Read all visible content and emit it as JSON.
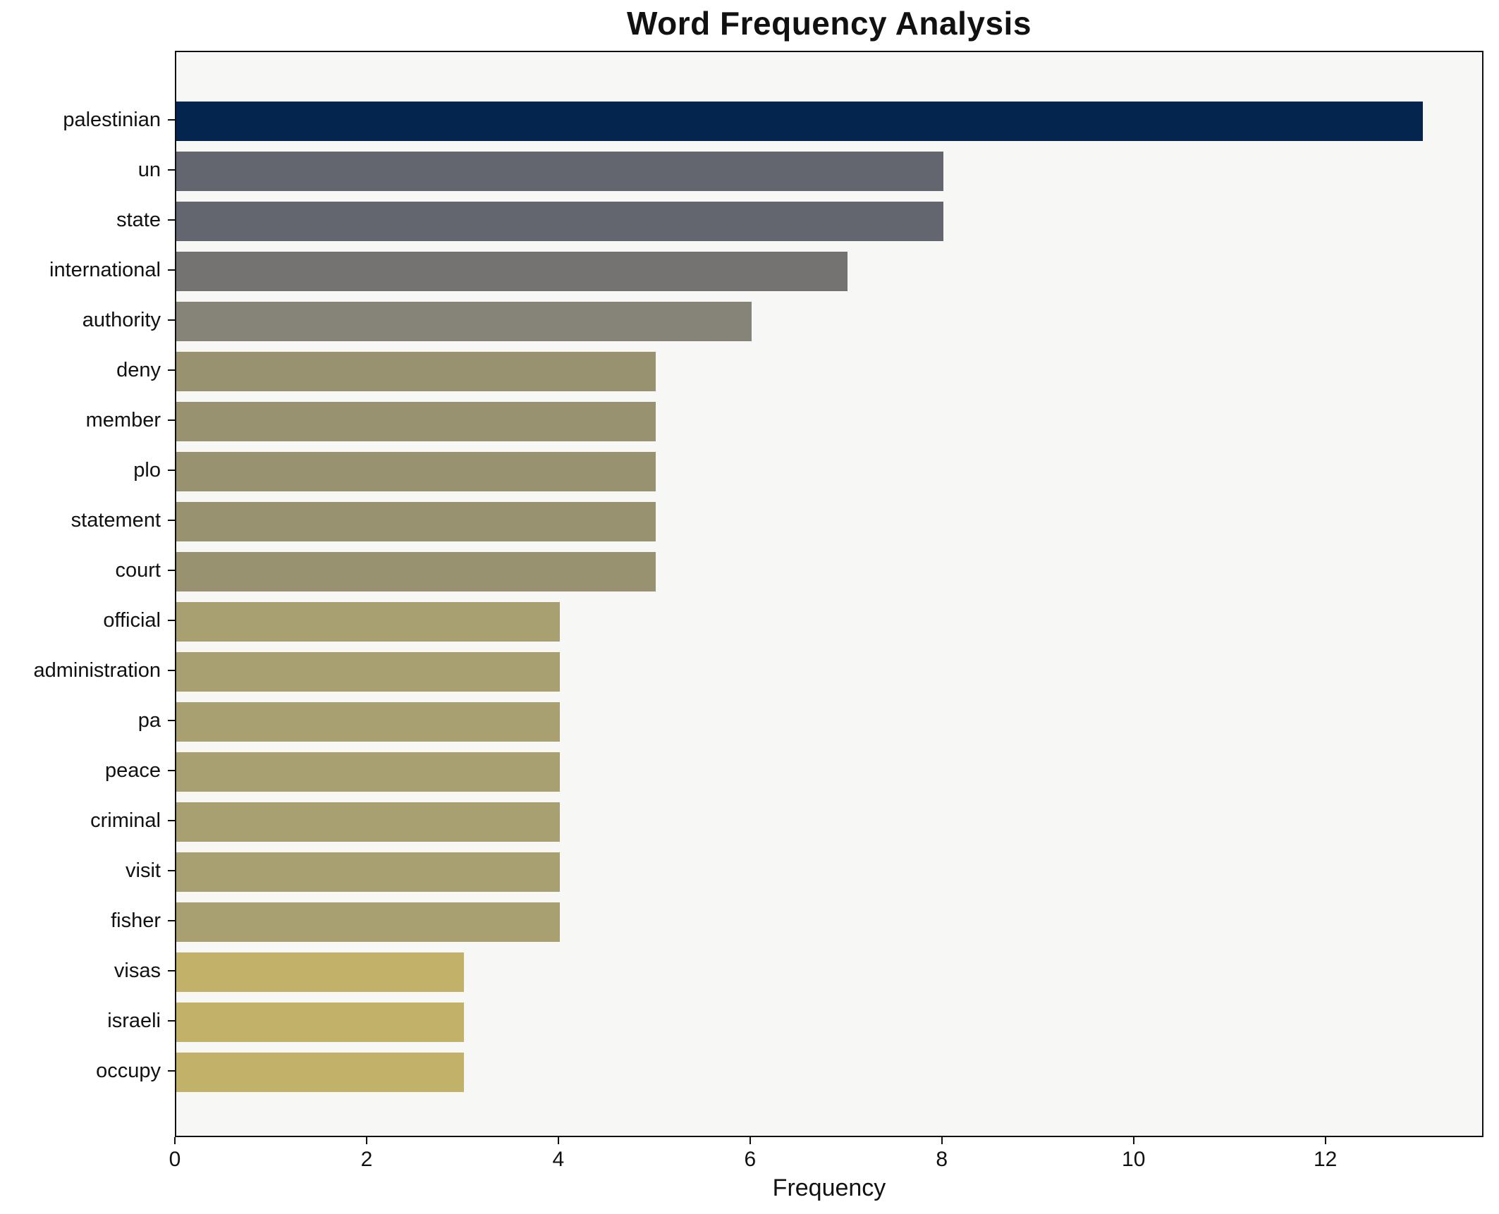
{
  "chart_data": {
    "type": "bar",
    "orientation": "horizontal",
    "title": "Word Frequency Analysis",
    "xlabel": "Frequency",
    "ylabel": "",
    "categories": [
      "palestinian",
      "un",
      "state",
      "international",
      "authority",
      "deny",
      "member",
      "plo",
      "statement",
      "court",
      "official",
      "administration",
      "pa",
      "peace",
      "criminal",
      "visit",
      "fisher",
      "visas",
      "israeli",
      "occupy"
    ],
    "values": [
      13,
      8,
      8,
      7,
      6,
      5,
      5,
      5,
      5,
      5,
      4,
      4,
      4,
      4,
      4,
      4,
      4,
      3,
      3,
      3
    ],
    "bar_colors": [
      "#03254e",
      "#63656f",
      "#63656f",
      "#747371",
      "#868379",
      "#989270",
      "#989270",
      "#989270",
      "#989270",
      "#989270",
      "#a9a071",
      "#a9a071",
      "#a9a071",
      "#a9a071",
      "#a9a071",
      "#a9a071",
      "#a9a071",
      "#c1b169",
      "#c1b169",
      "#c1b169"
    ],
    "xlim": [
      0,
      13.65
    ],
    "xticks": [
      0,
      2,
      4,
      6,
      8,
      10,
      12
    ],
    "grid": false,
    "legend": null,
    "plot_bg_color": "#f7f7f6",
    "figure_bg_color": "#ffffff",
    "frame_color": "#111111"
  }
}
